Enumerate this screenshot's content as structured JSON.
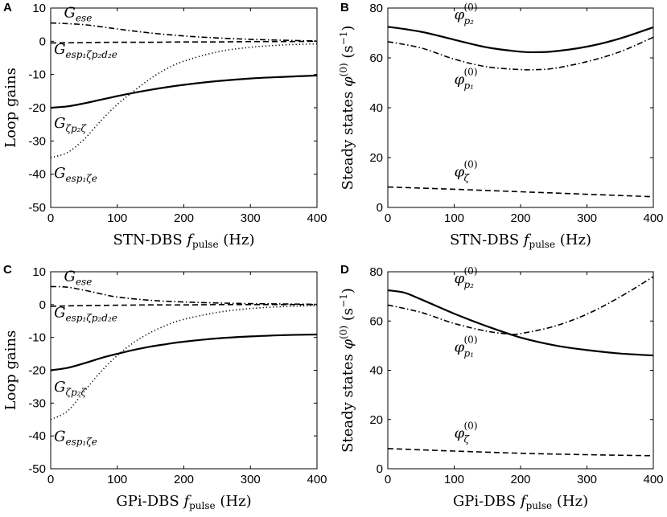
{
  "chart_data": [
    {
      "type": "line",
      "panel": "A",
      "xlabel": "STN-DBS f_pulse (Hz)",
      "xlabel_main": "STN-DBS ",
      "xlabel_f": "f",
      "xlabel_sub": "pulse",
      "xlabel_unit": " (Hz)",
      "ylabel": "Loop gains",
      "xlim": [
        0,
        400
      ],
      "ylim": [
        -50,
        10
      ],
      "xticks": [
        "0",
        "100",
        "200",
        "300",
        "400"
      ],
      "yticks": [
        "-50",
        "-40",
        "-30",
        "-20",
        "-10",
        "0",
        "10"
      ],
      "series": [
        {
          "name": "G_ese",
          "label_main": "G",
          "label_sub": "ese",
          "style": "dashdot",
          "x": [
            0,
            50,
            100,
            150,
            200,
            250,
            300,
            350,
            400
          ],
          "y": [
            5.5,
            5.0,
            3.7,
            2.5,
            1.6,
            1.0,
            0.6,
            0.3,
            0.1
          ]
        },
        {
          "name": "G_esp1ζp2d2e",
          "label_main": "G",
          "label_sub": "esp₁ζp₂d₂e",
          "style": "dashed",
          "x": [
            0,
            50,
            100,
            150,
            200,
            250,
            300,
            350,
            400
          ],
          "y": [
            -0.5,
            -0.4,
            -0.3,
            -0.3,
            -0.2,
            -0.2,
            -0.1,
            -0.1,
            0
          ]
        },
        {
          "name": "G_ζp2ζ",
          "label_main": "G",
          "label_sub": "ζp₂ζ",
          "style": "solid",
          "x": [
            0,
            25,
            50,
            75,
            100,
            125,
            150,
            175,
            200,
            250,
            300,
            350,
            400
          ],
          "y": [
            -20,
            -19.6,
            -18.7,
            -17.6,
            -16.5,
            -15.5,
            -14.6,
            -13.8,
            -13.1,
            -12.0,
            -11.2,
            -10.7,
            -10.3
          ]
        },
        {
          "name": "G_esp1ζe",
          "label_main": "G",
          "label_sub": "esp₁ζe",
          "style": "dotted",
          "x": [
            0,
            25,
            50,
            75,
            100,
            125,
            150,
            175,
            200,
            250,
            300,
            350,
            400
          ],
          "y": [
            -35,
            -33.5,
            -29.5,
            -24,
            -19,
            -15,
            -11.2,
            -8.2,
            -6,
            -3.2,
            -1.8,
            -1.1,
            -0.8
          ]
        }
      ]
    },
    {
      "type": "line",
      "panel": "B",
      "xlabel": "STN-DBS f_pulse (Hz)",
      "xlabel_main": "STN-DBS ",
      "xlabel_f": "f",
      "xlabel_sub": "pulse",
      "xlabel_unit": " (Hz)",
      "ylabel": "Steady states φ(0) (s−1)",
      "ylabel_main": "Steady states ",
      "ylabel_phi": "φ",
      "ylabel_sup": "(0)",
      "ylabel_unit_open": "  (s",
      "ylabel_unit_sup": "−1",
      "ylabel_unit_close": ")",
      "xlim": [
        0,
        400
      ],
      "ylim": [
        0,
        80
      ],
      "xticks": [
        "0",
        "100",
        "200",
        "300",
        "400"
      ],
      "yticks": [
        "0",
        "20",
        "40",
        "60",
        "80"
      ],
      "series": [
        {
          "name": "φp2(0)",
          "label_main": "φ",
          "label_sub": "p₂",
          "label_sup": "(0)",
          "style": "solid",
          "x": [
            0,
            50,
            100,
            150,
            200,
            225,
            250,
            300,
            350,
            400
          ],
          "y": [
            72.5,
            70.5,
            67.3,
            64.2,
            62.5,
            62.3,
            62.6,
            64.5,
            67.8,
            72.3
          ]
        },
        {
          "name": "φp1(0)",
          "label_main": "φ",
          "label_sub": "p₁",
          "label_sup": "(0)",
          "style": "dashdot",
          "x": [
            0,
            50,
            100,
            150,
            200,
            225,
            250,
            300,
            350,
            400
          ],
          "y": [
            66.5,
            64.0,
            59.5,
            56.4,
            55.3,
            55.3,
            55.8,
            58.5,
            62.5,
            68.3
          ]
        },
        {
          "name": "φζ(0)",
          "label_main": "φ",
          "label_sub": "ζ",
          "label_sup": "(0)",
          "style": "dashed",
          "x": [
            0,
            100,
            200,
            300,
            400
          ],
          "y": [
            8.2,
            7.3,
            6.3,
            5.3,
            4.3
          ]
        }
      ]
    },
    {
      "type": "line",
      "panel": "C",
      "xlabel": "GPi-DBS f_pulse (Hz)",
      "xlabel_main": "GPi-DBS ",
      "xlabel_f": "f",
      "xlabel_sub": "pulse",
      "xlabel_unit": " (Hz)",
      "ylabel": "Loop gains",
      "xlim": [
        0,
        400
      ],
      "ylim": [
        -50,
        10
      ],
      "xticks": [
        "0",
        "100",
        "200",
        "300",
        "400"
      ],
      "yticks": [
        "-50",
        "-40",
        "-30",
        "-20",
        "-10",
        "0",
        "10"
      ],
      "series": [
        {
          "name": "G_ese",
          "label_main": "G",
          "label_sub": "ese",
          "style": "dashdot",
          "x": [
            0,
            25,
            50,
            75,
            100,
            150,
            200,
            250,
            300,
            350,
            400
          ],
          "y": [
            5.5,
            5.3,
            4.4,
            3.3,
            2.3,
            1.3,
            0.8,
            0.5,
            0.3,
            0.2,
            0.1
          ]
        },
        {
          "name": "G_esp1ζp2d2e",
          "label_main": "G",
          "label_sub": "esp₁ζp₂d₂e",
          "style": "dashed",
          "x": [
            0,
            50,
            100,
            150,
            200,
            250,
            300,
            350,
            400
          ],
          "y": [
            -0.5,
            -0.3,
            -0.2,
            -0.1,
            -0.1,
            0,
            0,
            0,
            0
          ]
        },
        {
          "name": "G_ζp2ζ",
          "label_main": "G",
          "label_sub": "ζp₂ζ",
          "style": "solid",
          "x": [
            0,
            25,
            50,
            75,
            100,
            125,
            150,
            175,
            200,
            250,
            300,
            350,
            400
          ],
          "y": [
            -20,
            -19.3,
            -17.9,
            -16.3,
            -15,
            -13.8,
            -12.8,
            -12.0,
            -11.3,
            -10.3,
            -9.7,
            -9.3,
            -9.1
          ]
        },
        {
          "name": "G_esp1ζe",
          "label_main": "G",
          "label_sub": "esp₁ζe",
          "style": "dotted",
          "x": [
            0,
            25,
            50,
            75,
            100,
            125,
            150,
            175,
            200,
            250,
            300,
            350,
            400
          ],
          "y": [
            -35,
            -32.5,
            -26.5,
            -20.5,
            -15.5,
            -11.5,
            -8.5,
            -6.2,
            -4.5,
            -2.4,
            -1.2,
            -0.6,
            -0.3
          ]
        }
      ]
    },
    {
      "type": "line",
      "panel": "D",
      "xlabel": "GPi-DBS f_pulse (Hz)",
      "xlabel_main": "GPi-DBS ",
      "xlabel_f": "f",
      "xlabel_sub": "pulse",
      "xlabel_unit": " (Hz)",
      "ylabel": "Steady states φ(0) (s−1)",
      "ylabel_main": "Steady states ",
      "ylabel_phi": "φ",
      "ylabel_sup": "(0)",
      "ylabel_unit_open": "  (s",
      "ylabel_unit_sup": "−1",
      "ylabel_unit_close": ")",
      "xlim": [
        0,
        400
      ],
      "ylim": [
        0,
        80
      ],
      "xticks": [
        "0",
        "100",
        "200",
        "300",
        "400"
      ],
      "yticks": [
        "0",
        "20",
        "40",
        "60",
        "80"
      ],
      "series": [
        {
          "name": "φp2(0)",
          "label_main": "φ",
          "label_sub": "p₂",
          "label_sup": "(0)",
          "style": "solid",
          "x": [
            0,
            25,
            50,
            100,
            150,
            200,
            250,
            300,
            350,
            400
          ],
          "y": [
            72.5,
            71.5,
            68.8,
            63.0,
            57.8,
            53.3,
            50.2,
            48.2,
            46.8,
            46.0
          ]
        },
        {
          "name": "φp1(0)",
          "label_main": "φ",
          "label_sub": "p₁",
          "label_sup": "(0)",
          "style": "dashdot",
          "x": [
            0,
            50,
            100,
            150,
            185,
            200,
            250,
            300,
            350,
            400
          ],
          "y": [
            66.5,
            63.5,
            59.0,
            55.8,
            54.7,
            54.9,
            57.8,
            62.8,
            69.8,
            78.0
          ]
        },
        {
          "name": "φζ(0)",
          "label_main": "φ",
          "label_sub": "ζ",
          "label_sup": "(0)",
          "style": "dashed",
          "x": [
            0,
            100,
            200,
            300,
            400
          ],
          "y": [
            8.2,
            7.2,
            6.3,
            5.7,
            5.3
          ]
        }
      ]
    }
  ]
}
